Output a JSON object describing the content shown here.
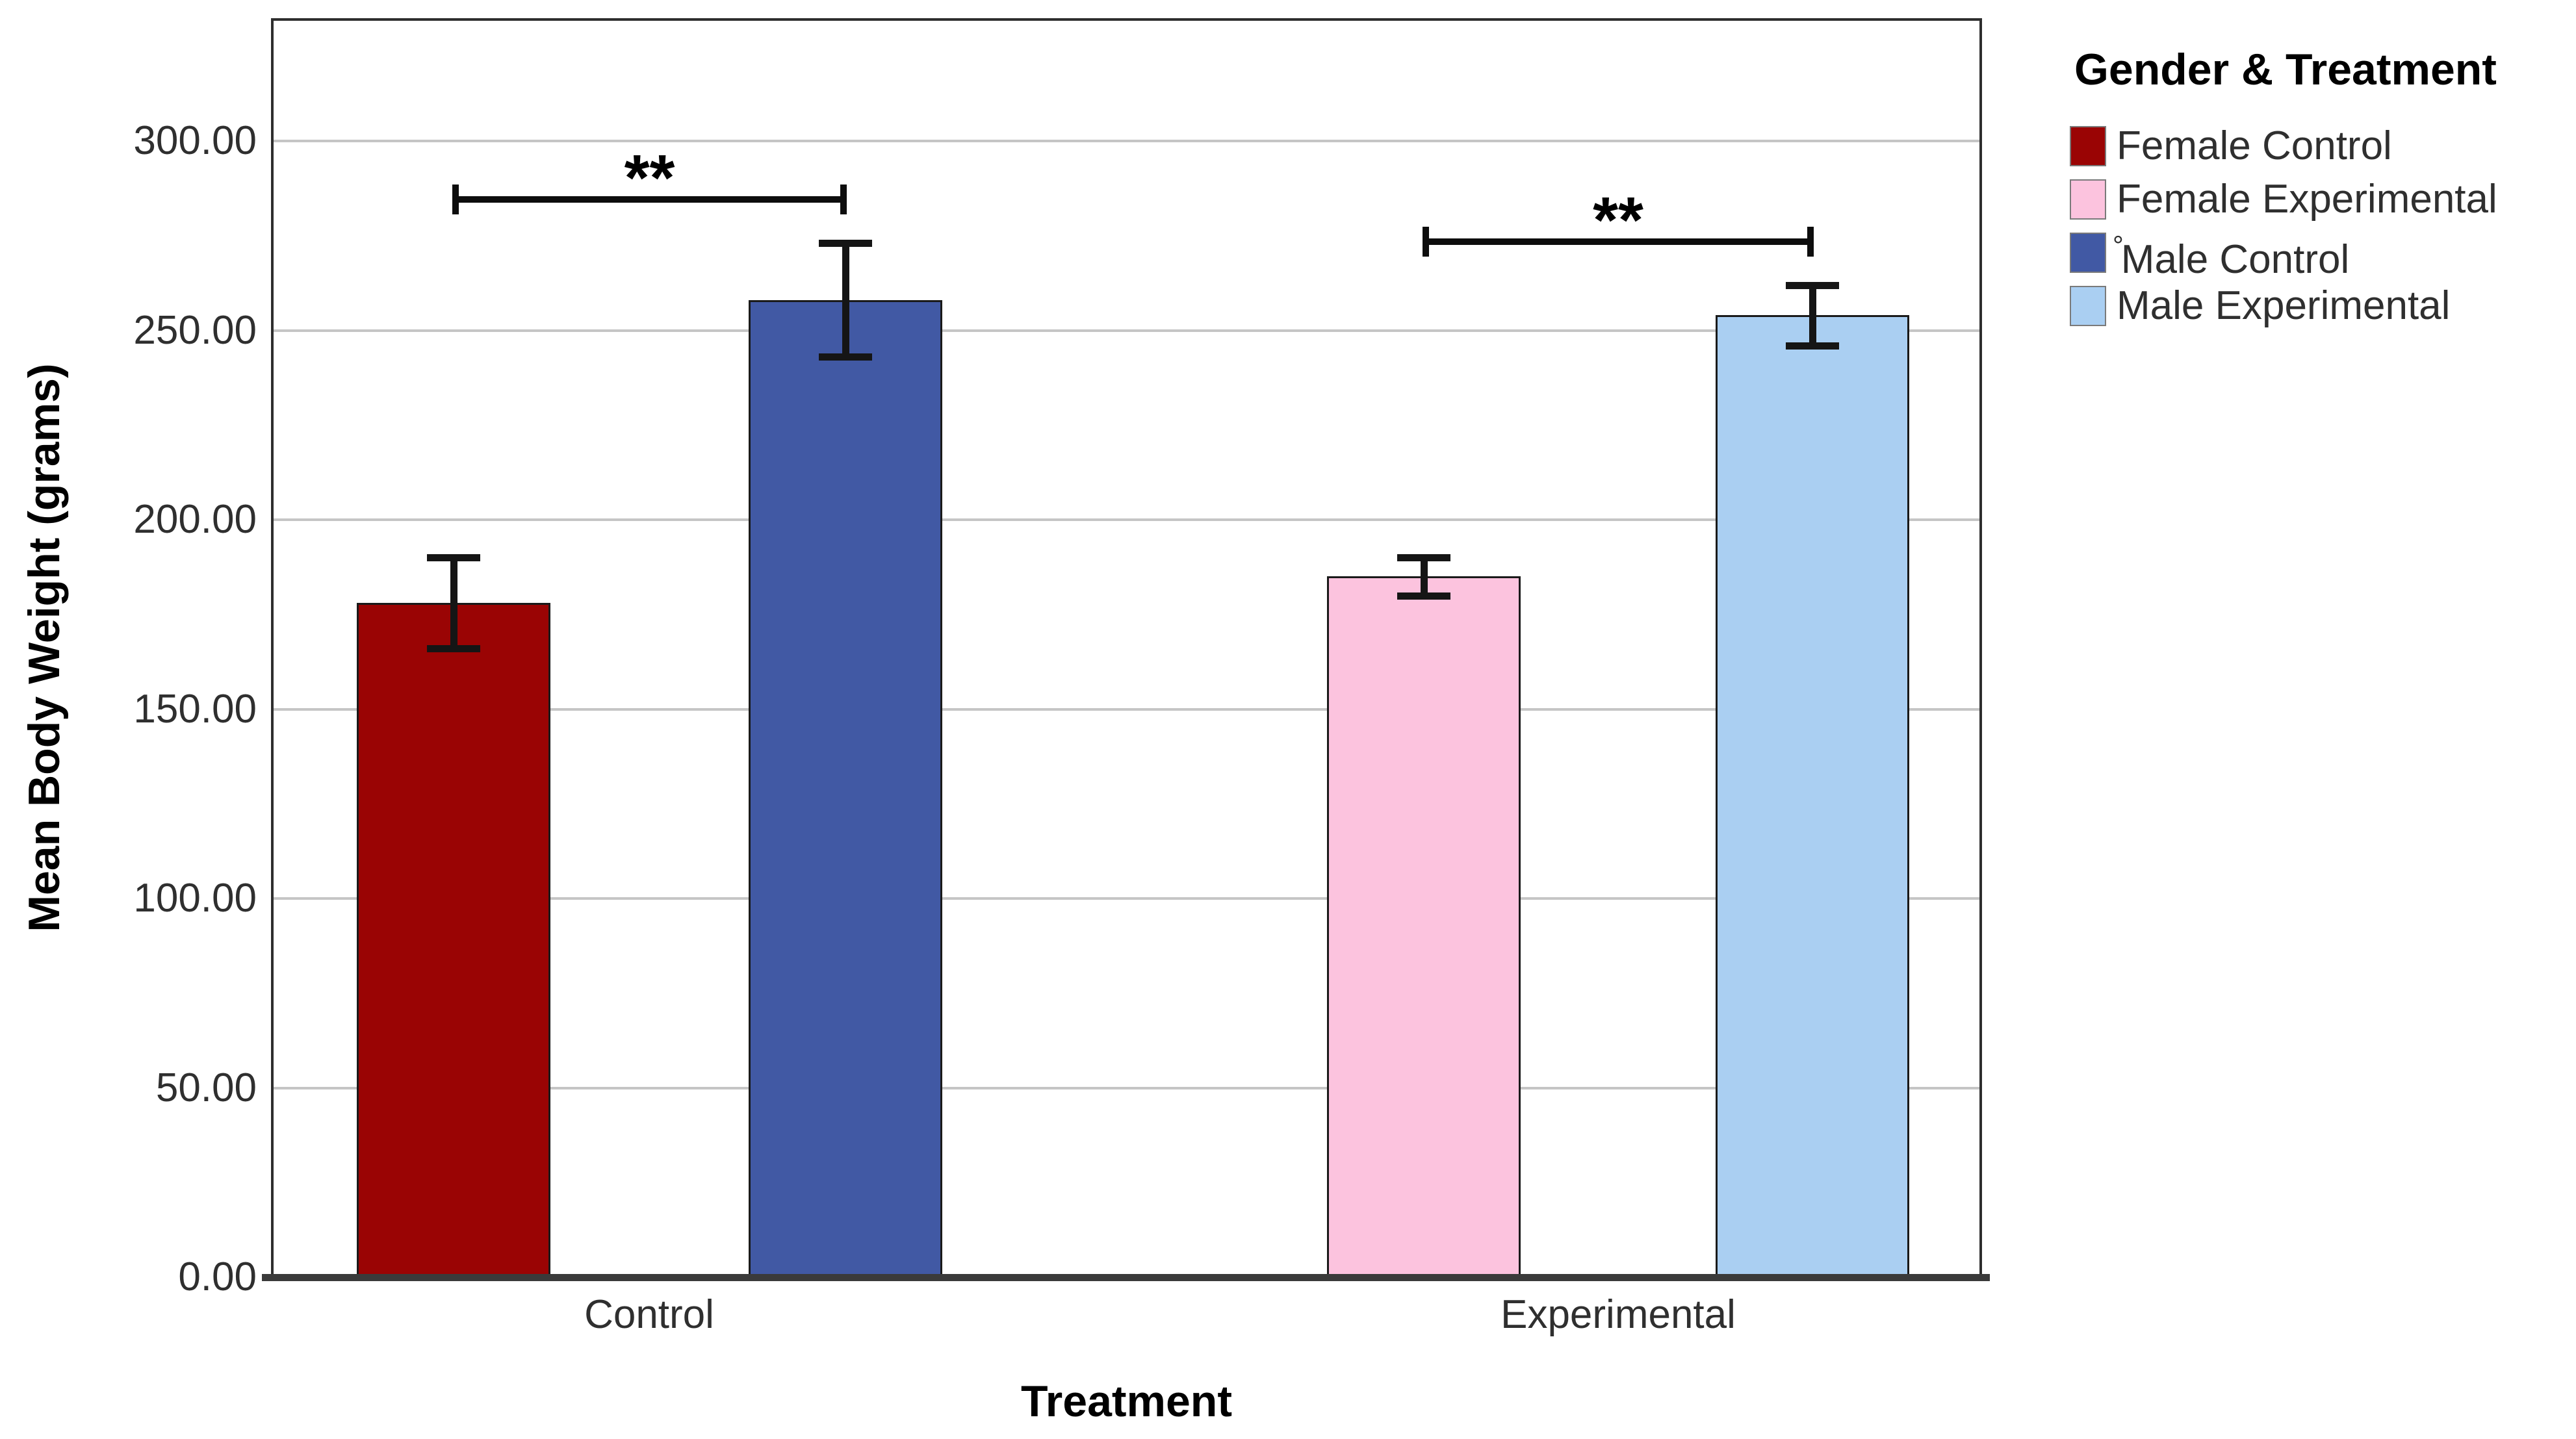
{
  "chart_data": {
    "type": "bar",
    "title": "",
    "xlabel": "Treatment",
    "ylabel": "Mean Body Weight (grams)",
    "categories": [
      "Control",
      "Experimental"
    ],
    "y_axis": {
      "min": 0,
      "max": 330,
      "ticks": [
        {
          "label": "300.00",
          "value": 300
        },
        {
          "label": "250.00",
          "value": 250
        },
        {
          "label": "200.00",
          "value": 200
        },
        {
          "label": "150.00",
          "value": 150
        },
        {
          "label": "100.00",
          "value": 100
        },
        {
          "label": "50.00",
          "value": 50
        },
        {
          "label": "0.00",
          "value": 0
        }
      ]
    },
    "grid": true,
    "legend_position": "right",
    "legend_title": "Gender & Treatment",
    "bars": [
      {
        "id": "female-control",
        "label": "Female Control",
        "category": "Control",
        "mean": 178,
        "err_low": 166,
        "err_high": 190,
        "color": "#9A0404"
      },
      {
        "id": "male-control",
        "label": "Male Control",
        "category": "Control",
        "mean": 258,
        "err_low": 243,
        "err_high": 273,
        "color": "#4159A4"
      },
      {
        "id": "female-experimental",
        "label": "Female Experimental",
        "category": "Experimental",
        "mean": 185,
        "err_low": 180,
        "err_high": 190,
        "color": "#FCC3DE"
      },
      {
        "id": "male-experimental",
        "label": "Male Experimental",
        "category": "Experimental",
        "mean": 254,
        "err_low": 246,
        "err_high": 262,
        "color": "#AACFF2"
      }
    ],
    "legend_items": [
      {
        "label": "Female Control",
        "color": "#9A0404",
        "prefix": ""
      },
      {
        "label": "Female Experimental",
        "color": "#FCC3DE",
        "prefix": ""
      },
      {
        "label": "Male Control",
        "color": "#4159A4",
        "prefix": "°"
      },
      {
        "label": "Male Experimental",
        "color": "#AACFF2",
        "prefix": ""
      }
    ],
    "significance": [
      {
        "pair": [
          "female-control",
          "male-control"
        ],
        "label": "**"
      },
      {
        "pair": [
          "female-experimental",
          "male-experimental"
        ],
        "label": "**"
      }
    ]
  },
  "colors": {
    "gridline": "#C5C5C5",
    "axis_border": "#2E2E2E",
    "baseline": "#3A3A3A",
    "bar_border": "#1A1A1A",
    "error_bar": "#151515",
    "text": "#2F2F2F",
    "title_text": "#000000"
  }
}
